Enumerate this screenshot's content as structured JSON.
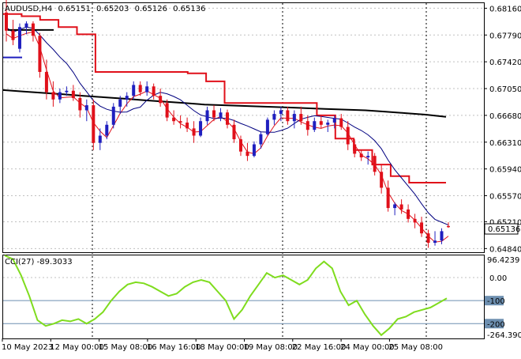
{
  "window": {
    "header": {
      "symbol": "AUDUSD,H4",
      "open": "0.65151",
      "high": "0.65203",
      "low": "0.65126",
      "close": "0.65136"
    }
  },
  "main_panel": {
    "price_ticks": [
      "0.68160",
      "0.67790",
      "0.67420",
      "0.67050",
      "0.66680",
      "0.66310",
      "0.65940",
      "0.65570",
      "0.65210",
      "0.64840"
    ],
    "current_price_label": "0.65136"
  },
  "cci_panel": {
    "title": "CCI(27) -89.3033",
    "top_value": "96.4239",
    "bottom_value": "-264.3903",
    "level_labels": [
      "0.00",
      "-100",
      "-200"
    ]
  },
  "time_axis": {
    "labels": [
      "10 May 2023",
      "12 May 00:00",
      "15 May 08:00",
      "16 May 16:00",
      "18 May 00:00",
      "19 May 08:00",
      "22 May 16:00",
      "24 May 00:00",
      "25 May 08:00"
    ]
  },
  "colors": {
    "bull": "#1f1fbf",
    "bear": "#e0101a",
    "ma_long": "#000000",
    "ma_band": "#000080",
    "channel": "#e0101a",
    "cci_line": "#7fdc1e",
    "level_line": "#6d8fb0"
  },
  "chart_data": [
    {
      "type": "candlestick",
      "title": "AUDUSD,H4",
      "ylim": [
        0.648,
        0.6823
      ],
      "candles": [
        [
          0.681,
          0.683,
          0.677,
          0.6785
        ],
        [
          0.6785,
          0.68,
          0.6765,
          0.6772
        ],
        [
          0.676,
          0.6795,
          0.6755,
          0.679
        ],
        [
          0.679,
          0.6798,
          0.678,
          0.6795
        ],
        [
          0.6795,
          0.6798,
          0.677,
          0.6778
        ],
        [
          0.6778,
          0.6782,
          0.672,
          0.6728
        ],
        [
          0.6728,
          0.6745,
          0.669,
          0.67
        ],
        [
          0.67,
          0.6715,
          0.668,
          0.669
        ],
        [
          0.669,
          0.6705,
          0.6685,
          0.67
        ],
        [
          0.67,
          0.6708,
          0.6695,
          0.6702
        ],
        [
          0.6702,
          0.671,
          0.6688,
          0.6692
        ],
        [
          0.6692,
          0.67,
          0.6665,
          0.6675
        ],
        [
          0.6675,
          0.669,
          0.666,
          0.6682
        ],
        [
          0.6682,
          0.669,
          0.662,
          0.663
        ],
        [
          0.663,
          0.665,
          0.662,
          0.664
        ],
        [
          0.664,
          0.666,
          0.6635,
          0.6655
        ],
        [
          0.6655,
          0.6685,
          0.665,
          0.668
        ],
        [
          0.668,
          0.6695,
          0.667,
          0.669
        ],
        [
          0.669,
          0.67,
          0.668,
          0.6695
        ],
        [
          0.6695,
          0.6715,
          0.669,
          0.671
        ],
        [
          0.671,
          0.6715,
          0.6695,
          0.67
        ],
        [
          0.67,
          0.6715,
          0.6695,
          0.6708
        ],
        [
          0.6708,
          0.6712,
          0.669,
          0.6695
        ],
        [
          0.6695,
          0.6705,
          0.668,
          0.6685
        ],
        [
          0.6685,
          0.669,
          0.666,
          0.6665
        ],
        [
          0.6665,
          0.6675,
          0.6655,
          0.666
        ],
        [
          0.666,
          0.6668,
          0.665,
          0.6658
        ],
        [
          0.6658,
          0.6665,
          0.6645,
          0.665
        ],
        [
          0.665,
          0.666,
          0.663,
          0.664
        ],
        [
          0.664,
          0.6665,
          0.6638,
          0.666
        ],
        [
          0.666,
          0.668,
          0.6655,
          0.6675
        ],
        [
          0.6675,
          0.6682,
          0.666,
          0.6665
        ],
        [
          0.6665,
          0.6678,
          0.666,
          0.6672
        ],
        [
          0.6672,
          0.6676,
          0.665,
          0.6655
        ],
        [
          0.6655,
          0.6662,
          0.663,
          0.6635
        ],
        [
          0.6635,
          0.664,
          0.6612,
          0.6618
        ],
        [
          0.6618,
          0.663,
          0.6605,
          0.6612
        ],
        [
          0.6612,
          0.6632,
          0.661,
          0.6628
        ],
        [
          0.6628,
          0.6645,
          0.6622,
          0.6642
        ],
        [
          0.6642,
          0.6665,
          0.664,
          0.6662
        ],
        [
          0.6662,
          0.6675,
          0.6655,
          0.667
        ],
        [
          0.667,
          0.668,
          0.666,
          0.6675
        ],
        [
          0.6675,
          0.668,
          0.6655,
          0.666
        ],
        [
          0.666,
          0.6675,
          0.665,
          0.667
        ],
        [
          0.667,
          0.668,
          0.6655,
          0.666
        ],
        [
          0.666,
          0.6668,
          0.664,
          0.6648
        ],
        [
          0.6648,
          0.6665,
          0.6645,
          0.666
        ],
        [
          0.666,
          0.6668,
          0.665,
          0.6655
        ],
        [
          0.6655,
          0.6662,
          0.6645,
          0.6658
        ],
        [
          0.6658,
          0.6668,
          0.665,
          0.6664
        ],
        [
          0.6664,
          0.667,
          0.6648,
          0.6652
        ],
        [
          0.6652,
          0.666,
          0.662,
          0.6628
        ],
        [
          0.6628,
          0.6635,
          0.661,
          0.6615
        ],
        [
          0.6615,
          0.662,
          0.6605,
          0.661
        ],
        [
          0.661,
          0.6618,
          0.66,
          0.6612
        ],
        [
          0.6612,
          0.6616,
          0.6585,
          0.659
        ],
        [
          0.659,
          0.66,
          0.656,
          0.6568
        ],
        [
          0.6568,
          0.6578,
          0.6535,
          0.654
        ],
        [
          0.654,
          0.6548,
          0.653,
          0.6545
        ],
        [
          0.6545,
          0.6552,
          0.6532,
          0.6538
        ],
        [
          0.6538,
          0.6545,
          0.652,
          0.6525
        ],
        [
          0.6525,
          0.6532,
          0.6512,
          0.652
        ],
        [
          0.652,
          0.6528,
          0.65,
          0.6505
        ],
        [
          0.6505,
          0.651,
          0.6485,
          0.6492
        ],
        [
          0.6492,
          0.6508,
          0.6488,
          0.6495
        ],
        [
          0.6495,
          0.6512,
          0.649,
          0.6508
        ],
        [
          0.65151,
          0.65203,
          0.65126,
          0.65136
        ]
      ],
      "overlays": {
        "ma_long": [
          0.6703,
          0.6701,
          0.6699,
          0.6697,
          0.6695,
          0.6693,
          0.6691,
          0.6689,
          0.6687,
          0.6685,
          0.6683,
          0.6682,
          0.6681,
          0.668,
          0.6679,
          0.6678,
          0.6677,
          0.6676,
          0.6675,
          0.6673,
          0.6671,
          0.6669,
          0.6666
        ],
        "channel_upper": [
          0.6808,
          0.6805,
          0.68,
          0.679,
          0.678,
          0.6728,
          0.6728,
          0.6728,
          0.6728,
          0.6728,
          0.6726,
          0.6715,
          0.6685,
          0.6685,
          0.6685,
          0.6685,
          0.6685,
          0.6668,
          0.6636,
          0.662,
          0.66,
          0.6584,
          0.6575,
          0.6575
        ]
      }
    },
    {
      "type": "line",
      "title": "CCI(27) -89.3033",
      "ylim": [
        -264.3903,
        96.4239
      ],
      "levels": [
        0,
        -100,
        -200
      ],
      "values": [
        96,
        80,
        10,
        -80,
        -185,
        -210,
        -200,
        -185,
        -190,
        -180,
        -200,
        -180,
        -150,
        -100,
        -60,
        -30,
        -20,
        -25,
        -40,
        -60,
        -80,
        -70,
        -40,
        -20,
        -10,
        -20,
        -60,
        -100,
        -180,
        -140,
        -80,
        -30,
        20,
        0,
        10,
        -10,
        -30,
        -10,
        40,
        70,
        40,
        -60,
        -120,
        -100,
        -160,
        -210,
        -250,
        -220,
        -180,
        -170,
        -150,
        -140,
        -130,
        -110,
        -90
      ]
    }
  ]
}
